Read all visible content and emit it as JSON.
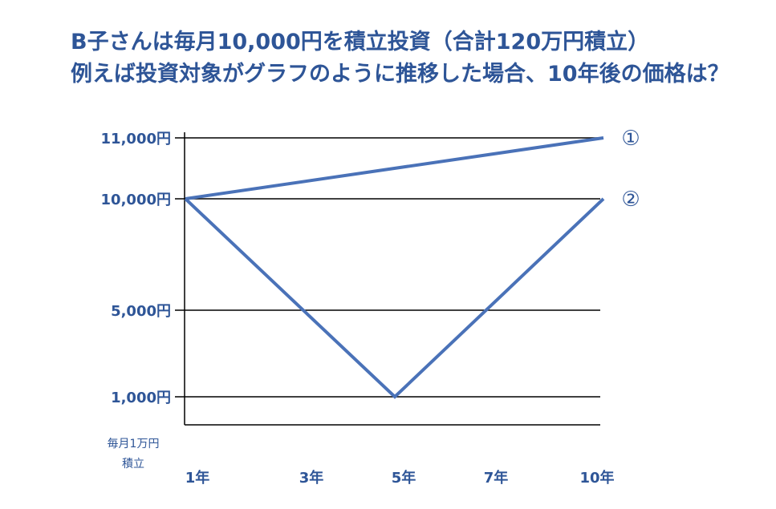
{
  "header": {
    "line1": "B子さんは毎月10,000円を積立投資（合計120万円積立）",
    "line2": "例えば投資対象がグラフのように推移した場合、10年後の価格は？"
  },
  "chart_data": {
    "type": "line",
    "title": "",
    "xlabel": "",
    "ylabel": "",
    "x_ticks": [
      "1年",
      "3年",
      "5年",
      "7年",
      "10年"
    ],
    "y_ticks": [
      {
        "value": 11000,
        "label": "11,000円"
      },
      {
        "value": 10000,
        "label": "10,000円"
      },
      {
        "value": 5000,
        "label": "5,000円"
      },
      {
        "value": 1000,
        "label": "1,000円"
      }
    ],
    "axis_note": [
      "毎月1万円",
      "積立"
    ],
    "grid": true,
    "series": [
      {
        "name": "①",
        "points": [
          {
            "x": "1年",
            "y": 10000
          },
          {
            "x": "10年",
            "y": 11000
          }
        ]
      },
      {
        "name": "②",
        "points": [
          {
            "x": "1年",
            "y": 10000
          },
          {
            "x": "5年",
            "y": 1000
          },
          {
            "x": "10年",
            "y": 10000
          }
        ]
      }
    ],
    "colors": {
      "line": "#4a72b8",
      "text": "#2e5597",
      "grid": "#000000"
    }
  }
}
